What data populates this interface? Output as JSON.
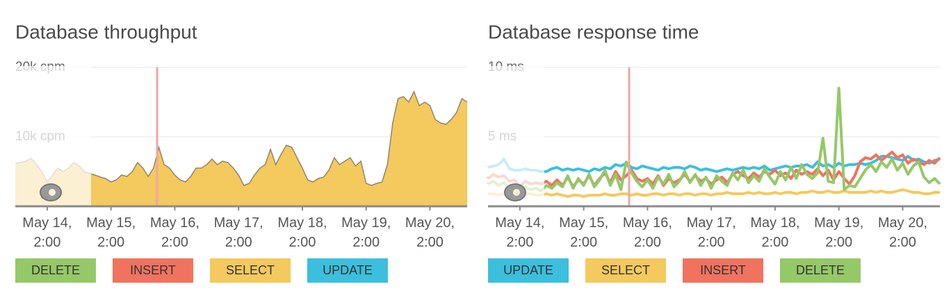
{
  "chart_data": [
    {
      "type": "area",
      "title": "Database throughput",
      "x": [
        -12,
        -10,
        -8,
        -6,
        -4,
        -2,
        0,
        2,
        4,
        6,
        8,
        10,
        12,
        14,
        16,
        18,
        20,
        22,
        24,
        26,
        28,
        30,
        32,
        34,
        36,
        38,
        40,
        42,
        44,
        46,
        48,
        50,
        52,
        54,
        56,
        58,
        60,
        62,
        64,
        66,
        68,
        70,
        72,
        74,
        76,
        78,
        80,
        82,
        84,
        86,
        88,
        90,
        92,
        94,
        96,
        98,
        100,
        102,
        104,
        106,
        108,
        110,
        112,
        114,
        116,
        118,
        120,
        122,
        124,
        126,
        128,
        130,
        132,
        134,
        136,
        138,
        140,
        142,
        144,
        146,
        148,
        150,
        152,
        154,
        156,
        158
      ],
      "series": [
        {
          "name": "DELETE",
          "color": "#95c867"
        },
        {
          "name": "INSERT",
          "color": "#f0735f"
        },
        {
          "name": "SELECT",
          "color": "#f4c95d",
          "values": [
            6200,
            6300,
            6500,
            6900,
            6000,
            5000,
            3500,
            4500,
            5500,
            5000,
            5500,
            6300,
            5800,
            5000,
            4700,
            4500,
            4200,
            4000,
            3500,
            3800,
            4500,
            4300,
            5000,
            6300,
            5500,
            4300,
            5500,
            8500,
            6000,
            5500,
            4500,
            3800,
            3500,
            4300,
            5500,
            5500,
            6000,
            6800,
            6000,
            6500,
            6300,
            5500,
            4500,
            3000,
            3300,
            4500,
            5500,
            6000,
            8200,
            6000,
            7500,
            8800,
            8500,
            7000,
            5500,
            3800,
            3500,
            4000,
            4200,
            5200,
            7000,
            6000,
            6500,
            7000,
            5800,
            6500,
            3300,
            3000,
            3300,
            3500,
            6000,
            12000,
            15500,
            15800,
            15000,
            16500,
            14500,
            15000,
            14500,
            12500,
            12000,
            11800,
            12500,
            13500,
            15500,
            15000
          ]
        },
        {
          "name": "UPDATE",
          "color": "#3bbfdd"
        }
      ],
      "xlim": [
        -12,
        158
      ],
      "ylim": [
        0,
        20000
      ],
      "xticks": [
        {
          "value": 0,
          "label": "May 14, 2:00"
        },
        {
          "value": 24,
          "label": "May 15, 2:00"
        },
        {
          "value": 48,
          "label": "May 16, 2:00"
        },
        {
          "value": 72,
          "label": "May 17, 2:00"
        },
        {
          "value": 96,
          "label": "May 18, 2:00"
        },
        {
          "value": 120,
          "label": "May 19, 2:00"
        },
        {
          "value": 144,
          "label": "May 20, 2:00"
        }
      ],
      "yticks": [
        {
          "value": 10000,
          "label": "10k cpm"
        },
        {
          "value": 20000,
          "label": "20k cpm"
        }
      ],
      "grid": true
    },
    {
      "type": "line",
      "title": "Database response time",
      "x": [
        -12,
        -10,
        -8,
        -6,
        -4,
        -2,
        0,
        2,
        4,
        6,
        8,
        10,
        12,
        14,
        16,
        18,
        20,
        22,
        24,
        26,
        28,
        30,
        32,
        34,
        36,
        38,
        40,
        42,
        44,
        46,
        48,
        50,
        52,
        54,
        56,
        58,
        60,
        62,
        64,
        66,
        68,
        70,
        72,
        74,
        76,
        78,
        80,
        82,
        84,
        86,
        88,
        90,
        92,
        94,
        96,
        98,
        100,
        102,
        104,
        106,
        108,
        110,
        112,
        114,
        116,
        118,
        120,
        122,
        124,
        126,
        128,
        130,
        132,
        134,
        136,
        138,
        140,
        142,
        144,
        146,
        148,
        150,
        152,
        154,
        156,
        158
      ],
      "series": [
        {
          "name": "UPDATE",
          "color": "#3bbfdd",
          "values": [
            2.8,
            2.9,
            3.0,
            3.4,
            2.7,
            2.6,
            2.6,
            2.7,
            2.6,
            2.6,
            2.5,
            2.5,
            2.7,
            2.8,
            2.6,
            2.7,
            2.6,
            2.7,
            2.6,
            2.5,
            2.7,
            2.6,
            2.8,
            2.7,
            3.0,
            2.9,
            3.1,
            2.8,
            2.7,
            2.9,
            2.8,
            2.7,
            2.6,
            2.8,
            2.7,
            2.8,
            2.8,
            2.7,
            2.9,
            2.8,
            2.6,
            2.7,
            2.6,
            2.5,
            2.6,
            2.7,
            2.6,
            2.7,
            2.8,
            2.7,
            2.8,
            2.7,
            2.9,
            2.6,
            2.7,
            2.8,
            2.9,
            2.8,
            2.9,
            2.9,
            3.0,
            2.8,
            3.2,
            2.9,
            3.0,
            2.8,
            3.1,
            2.9,
            3.0,
            3.0,
            3.1,
            3.0,
            3.1,
            3.3,
            3.6,
            3.6,
            3.5,
            3.4,
            3.3,
            3.6,
            3.3,
            3.4,
            3.2,
            3.1,
            3.3,
            3.4
          ]
        },
        {
          "name": "SELECT",
          "color": "#f4c95d",
          "values": [
            0.9,
            0.9,
            0.8,
            0.9,
            0.8,
            0.8,
            0.8,
            0.9,
            0.9,
            0.8,
            0.8,
            0.9,
            0.8,
            0.9,
            0.8,
            0.7,
            0.8,
            0.8,
            0.7,
            0.8,
            0.8,
            0.8,
            0.9,
            0.8,
            0.8,
            0.9,
            0.9,
            0.8,
            0.9,
            0.8,
            0.8,
            0.9,
            0.9,
            0.8,
            0.9,
            0.9,
            0.8,
            0.9,
            0.9,
            0.8,
            0.9,
            0.9,
            0.8,
            0.9,
            0.9,
            1.0,
            0.9,
            0.9,
            0.9,
            1.0,
            0.9,
            1.0,
            0.9,
            0.9,
            1.0,
            0.9,
            1.0,
            1.0,
            0.9,
            1.0,
            1.0,
            1.1,
            1.0,
            1.0,
            1.1,
            1.0,
            1.0,
            1.1,
            1.0,
            1.0,
            1.0,
            1.0,
            1.1,
            1.0,
            1.1,
            1.0,
            1.0,
            1.1,
            1.2,
            1.1,
            1.0,
            1.0,
            0.9,
            0.9,
            1.0,
            1.0
          ]
        },
        {
          "name": "INSERT",
          "color": "#f0735f",
          "values": [
            2.0,
            2.3,
            2.1,
            2.2,
            1.8,
            1.9,
            1.4,
            1.8,
            1.6,
            1.7,
            1.6,
            1.8,
            1.5,
            1.9,
            1.5,
            2.1,
            1.4,
            1.9,
            1.6,
            2.2,
            1.5,
            2.0,
            2.4,
            1.7,
            2.5,
            1.9,
            2.2,
            2.6,
            2.0,
            1.8,
            2.0,
            1.6,
            2.2,
            1.5,
            2.0,
            1.7,
            1.9,
            2.3,
            1.8,
            2.2,
            1.8,
            2.0,
            1.6,
            1.9,
            2.1,
            1.7,
            2.3,
            2.5,
            2.2,
            2.0,
            2.4,
            2.1,
            2.5,
            2.3,
            2.6,
            2.2,
            2.4,
            2.0,
            2.6,
            2.3,
            2.5,
            2.3,
            2.7,
            2.2,
            2.6,
            1.9,
            2.5,
            2.0,
            1.6,
            2.2,
            3.2,
            3.5,
            3.4,
            3.7,
            3.3,
            3.6,
            3.9,
            3.5,
            3.7,
            3.1,
            3.4,
            3.2,
            3.0,
            3.3,
            3.1,
            3.5
          ]
        },
        {
          "name": "DELETE",
          "color": "#95c867",
          "values": [
            1.6,
            1.8,
            1.5,
            1.7,
            1.3,
            1.5,
            1.2,
            1.4,
            1.2,
            1.3,
            1.1,
            1.5,
            1.3,
            1.7,
            1.4,
            2.2,
            1.3,
            2.0,
            1.5,
            2.3,
            1.4,
            1.9,
            2.6,
            1.5,
            2.3,
            1.2,
            3.2,
            2.4,
            1.8,
            1.4,
            1.9,
            1.3,
            2.1,
            1.6,
            2.3,
            1.4,
            1.8,
            2.5,
            1.7,
            2.3,
            1.5,
            2.1,
            1.3,
            2.2,
            1.8,
            1.5,
            2.4,
            1.9,
            2.6,
            1.7,
            2.2,
            1.8,
            2.7,
            2.1,
            1.6,
            2.5,
            1.9,
            2.8,
            2.0,
            3.0,
            2.3,
            2.0,
            2.4,
            4.9,
            1.8,
            1.7,
            8.5,
            1.2,
            1.5,
            1.4,
            2.0,
            2.6,
            3.0,
            2.5,
            3.2,
            2.8,
            3.4,
            2.6,
            3.1,
            2.3,
            2.9,
            3.2,
            2.1,
            1.7,
            2.0,
            1.6
          ]
        }
      ],
      "xlim": [
        -12,
        158
      ],
      "ylim": [
        0,
        10
      ],
      "xticks": [
        {
          "value": 0,
          "label": "May 14, 2:00"
        },
        {
          "value": 24,
          "label": "May 15, 2:00"
        },
        {
          "value": 48,
          "label": "May 16, 2:00"
        },
        {
          "value": 72,
          "label": "May 17, 2:00"
        },
        {
          "value": 96,
          "label": "May 18, 2:00"
        },
        {
          "value": 120,
          "label": "May 19, 2:00"
        },
        {
          "value": 144,
          "label": "May 20, 2:00"
        }
      ],
      "yticks": [
        {
          "value": 5,
          "label": "5 ms"
        },
        {
          "value": 10,
          "label": "10 ms"
        }
      ],
      "grid": true
    }
  ]
}
